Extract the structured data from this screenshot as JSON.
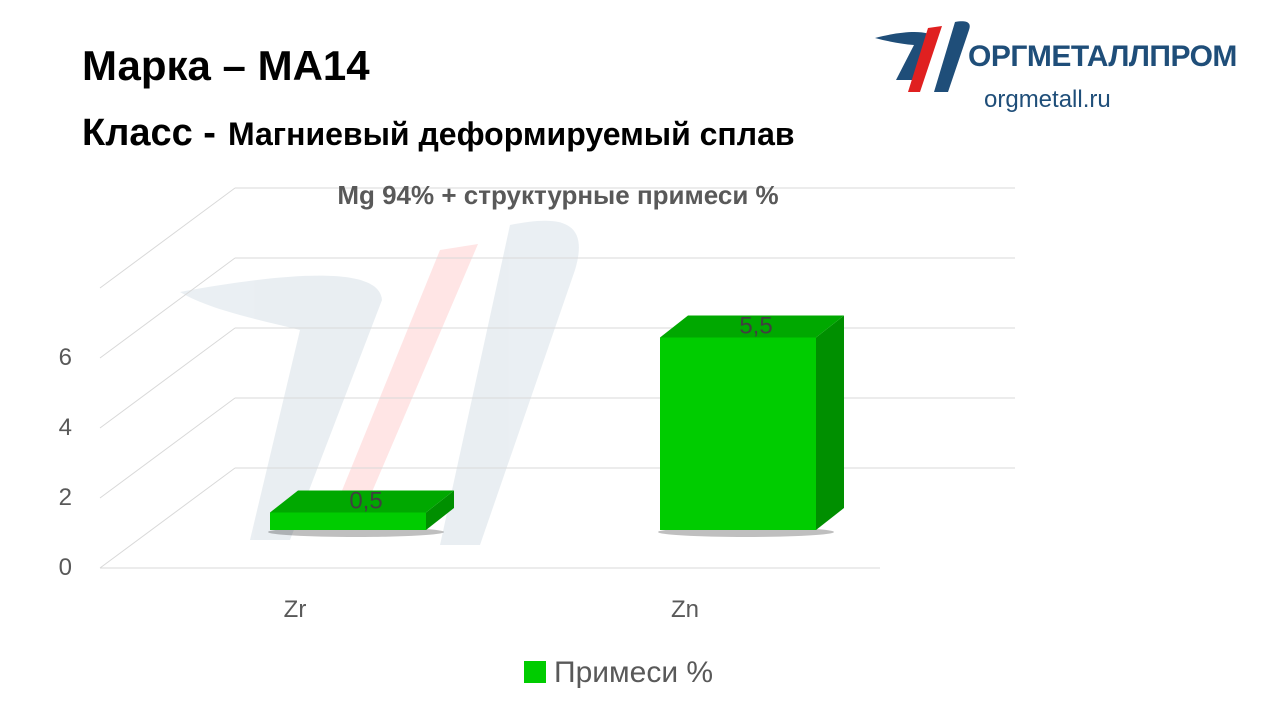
{
  "header": {
    "marka": "Марка – MA14",
    "klass_label": "Класс -",
    "klass_value": "Магниевый деформируемый сплав"
  },
  "logo": {
    "name": "ОРГМЕТАЛЛПРОМ",
    "url": "orgmetall.ru",
    "icon": "orgmetallprom-logo-icon",
    "colors": [
      "#1f4e79",
      "#e02020"
    ]
  },
  "chart_data": {
    "type": "bar",
    "title": "Mg 94% + структурные примеси %",
    "categories": [
      "Zr",
      "Zn"
    ],
    "series": [
      {
        "name": "Примеси %",
        "values": [
          0.5,
          5.5
        ],
        "color": "#00cc00"
      }
    ],
    "data_labels": [
      "0,5",
      "5,5"
    ],
    "yticks": [
      "0",
      "2",
      "4",
      "6"
    ],
    "ylim": [
      0,
      8
    ],
    "grid": true,
    "legend": "bottom",
    "style": "3d"
  }
}
